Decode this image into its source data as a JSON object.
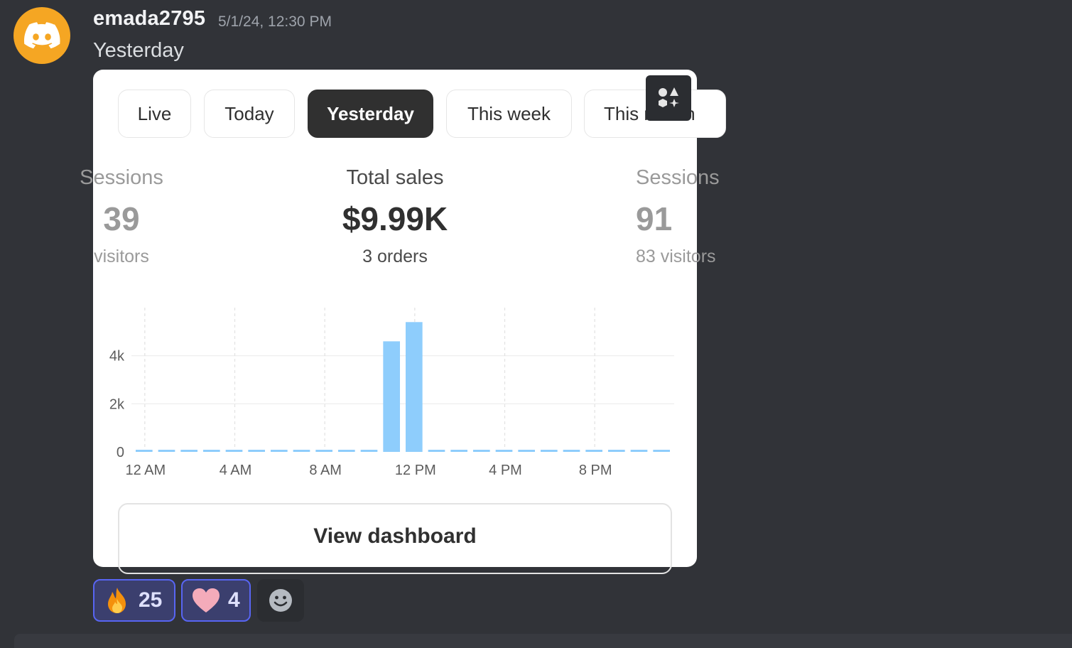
{
  "message": {
    "username": "emada2795",
    "timestamp": "5/1/24, 12:30 PM",
    "text": "Yesterday"
  },
  "card": {
    "tabs": [
      {
        "label": "Live",
        "active": false
      },
      {
        "label": "Today",
        "active": false
      },
      {
        "label": "Yesterday",
        "active": true
      },
      {
        "label": "This week",
        "active": false
      },
      {
        "label": "This month",
        "active": false
      }
    ],
    "metrics": {
      "left": {
        "label": "Sessions",
        "value": "39",
        "sub": "visitors"
      },
      "center": {
        "label": "Total sales",
        "value": "$9.99K",
        "sub": "3 orders"
      },
      "right": {
        "label": "Sessions",
        "value": "91",
        "sub": "83 visitors"
      }
    },
    "cta_label": "View dashboard"
  },
  "chart_data": {
    "type": "bar",
    "title": "",
    "xlabel": "",
    "ylabel": "",
    "x_tick_labels": [
      "12 AM",
      "4 AM",
      "8 AM",
      "12 PM",
      "4 PM",
      "8 PM"
    ],
    "y_tick_labels": [
      "0",
      "2k",
      "4k"
    ],
    "ylim": [
      0,
      6000
    ],
    "grid": true,
    "categories": [
      "12 AM",
      "1 AM",
      "2 AM",
      "3 AM",
      "4 AM",
      "5 AM",
      "6 AM",
      "7 AM",
      "8 AM",
      "9 AM",
      "10 AM",
      "11 AM",
      "12 PM",
      "1 PM",
      "2 PM",
      "3 PM",
      "4 PM",
      "5 PM",
      "6 PM",
      "7 PM",
      "8 PM",
      "9 PM",
      "10 PM",
      "11 PM"
    ],
    "values": [
      0,
      0,
      0,
      0,
      0,
      0,
      0,
      0,
      0,
      0,
      0,
      4600,
      5400,
      0,
      0,
      0,
      0,
      0,
      0,
      0,
      0,
      0,
      0,
      0
    ],
    "bar_color": "#8ecdfc"
  },
  "reactions": [
    {
      "emoji": "fire",
      "count": "25"
    },
    {
      "emoji": "heart",
      "count": "4"
    }
  ],
  "icons": {
    "avatar": "discord-logo-icon",
    "app": "app-grid-icon",
    "add_reaction": "smiley-icon"
  },
  "colors": {
    "background": "#313338",
    "avatar_bg": "#f5a623",
    "reaction_border": "#5865f2",
    "active_tab": "#303030"
  }
}
